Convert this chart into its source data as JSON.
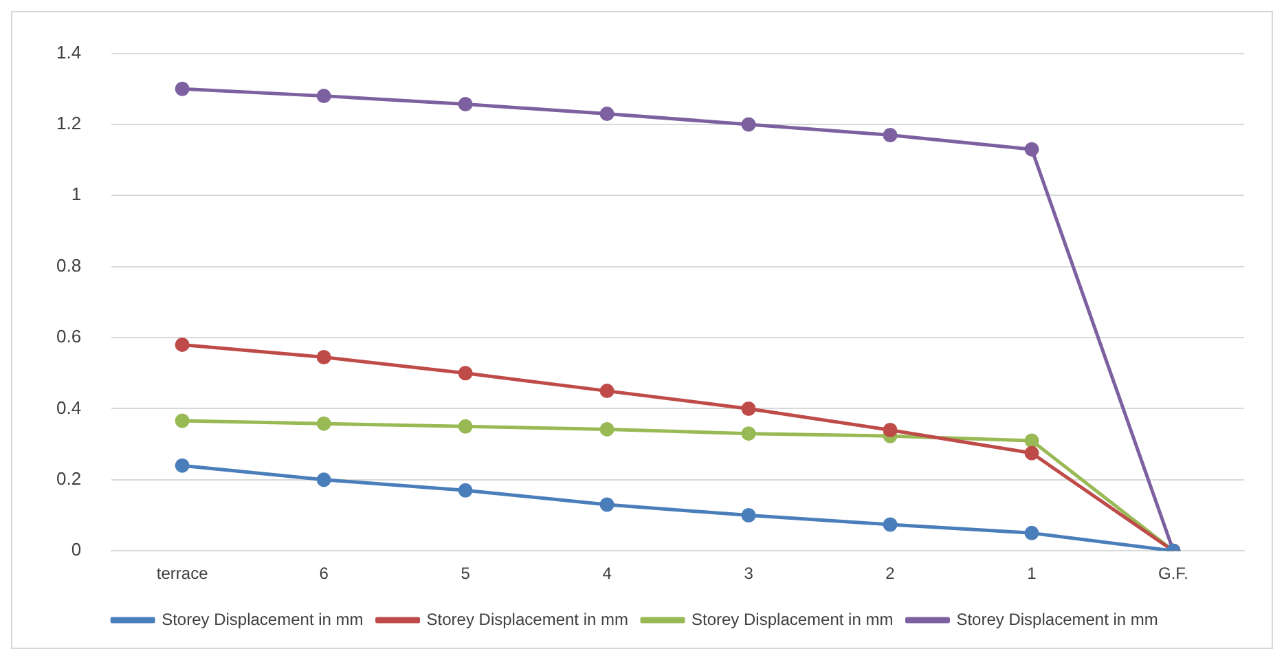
{
  "chart_data": {
    "type": "line",
    "categories": [
      "terrace",
      "6",
      "5",
      "4",
      "3",
      "2",
      "1",
      "G.F."
    ],
    "series": [
      {
        "name": "Storey Displacement in mm",
        "color": "#4a7ebb",
        "values": [
          0.24,
          0.2,
          0.17,
          0.13,
          0.1,
          0.074,
          0.05,
          0
        ]
      },
      {
        "name": "Storey Displacement in mm",
        "color": "#be4b48",
        "values": [
          0.58,
          0.545,
          0.5,
          0.45,
          0.4,
          0.34,
          0.275,
          0
        ]
      },
      {
        "name": "Storey Displacement in mm",
        "color": "#98b954",
        "values": [
          0.366,
          0.358,
          0.35,
          0.342,
          0.33,
          0.323,
          0.31,
          0
        ]
      },
      {
        "name": "Storey Displacement in mm",
        "color": "#7d60a0",
        "values": [
          1.3,
          1.28,
          1.257,
          1.23,
          1.2,
          1.17,
          1.13,
          0
        ]
      }
    ],
    "ylim": [
      0,
      1.4
    ],
    "yticks": [
      0,
      0.2,
      0.4,
      0.6,
      0.8,
      1,
      1.2,
      1.4
    ],
    "grid": "y",
    "legend": "bottom",
    "marker": "circle",
    "line_style": "solid"
  }
}
